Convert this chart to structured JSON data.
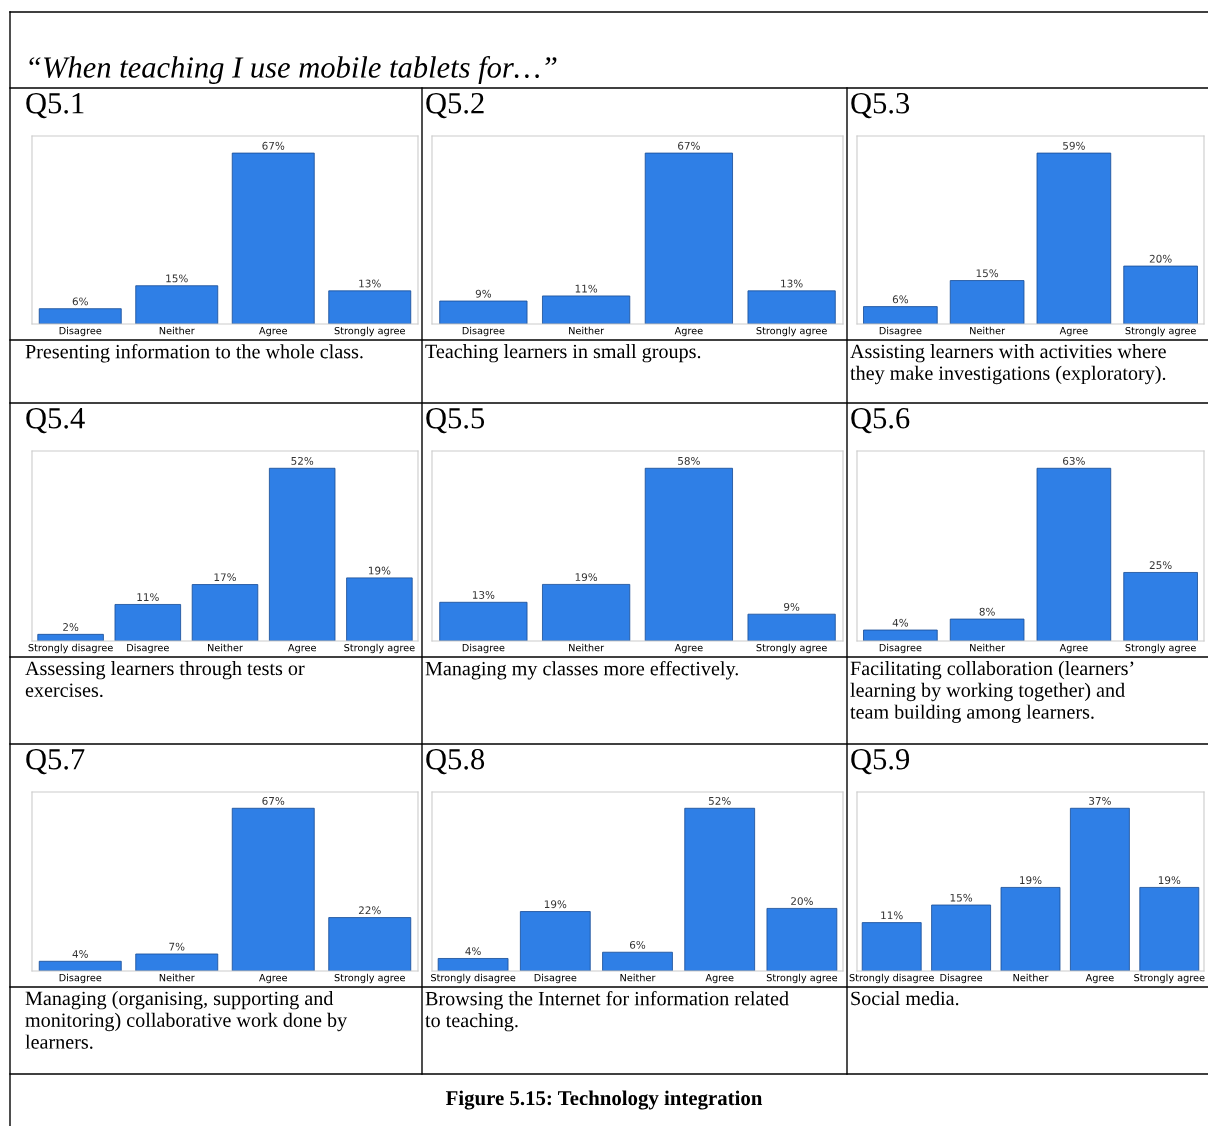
{
  "chart_data": [
    {
      "type": "bar",
      "title": "Q5.1",
      "categories": [
        "Disagree",
        "Neither",
        "Agree",
        "Strongly agree"
      ],
      "values": [
        6,
        15,
        67,
        13
      ],
      "value_labels": [
        "6%",
        "15%",
        "67%",
        "13%"
      ],
      "color": "#2f7fe6",
      "annotations": [
        "Presenting information to the whole class.",
        "“When teaching I use mobile tablets for…”"
      ]
    },
    {
      "type": "bar",
      "title": "Q5.2",
      "categories": [
        "Disagree",
        "Neither",
        "Agree",
        "Strongly agree"
      ],
      "values": [
        9,
        11,
        67,
        13
      ],
      "value_labels": [
        "9%",
        "11%",
        "67%",
        "13%"
      ],
      "color": "#2f7fe6",
      "annotations": [
        "Teaching learners in small groups."
      ]
    },
    {
      "type": "bar",
      "title": "Q5.3",
      "categories": [
        "Disagree",
        "Neither",
        "Agree",
        "Strongly agree"
      ],
      "values": [
        6,
        15,
        59,
        20
      ],
      "value_labels": [
        "6%",
        "15%",
        "59%",
        "20%"
      ],
      "color": "#2f7fe6",
      "annotations": [
        "Assisting learners with activities where\nthey make investigations (exploratory)."
      ]
    },
    {
      "type": "bar",
      "title": "Q5.4",
      "categories": [
        "Strongly disagree",
        "Disagree",
        "Neither",
        "Agree",
        "Strongly agree"
      ],
      "values": [
        2,
        11,
        17,
        52,
        19
      ],
      "value_labels": [
        "2%",
        "11%",
        "17%",
        "52%",
        "19%"
      ],
      "color": "#2f7fe6",
      "annotations": [
        "Assessing learners through tests or\nexercises."
      ]
    },
    {
      "type": "bar",
      "title": "Q5.5",
      "categories": [
        "Disagree",
        "Neither",
        "Agree",
        "Strongly agree"
      ],
      "values": [
        13,
        19,
        58,
        9
      ],
      "value_labels": [
        "13%",
        "19%",
        "58%",
        "9%"
      ],
      "color": "#2f7fe6",
      "annotations": [
        "Managing my classes more effectively."
      ]
    },
    {
      "type": "bar",
      "title": "Q5.6",
      "categories": [
        "Disagree",
        "Neither",
        "Agree",
        "Strongly agree"
      ],
      "values": [
        4,
        8,
        63,
        25
      ],
      "value_labels": [
        "4%",
        "8%",
        "63%",
        "25%"
      ],
      "color": "#2f7fe6",
      "annotations": [
        "Facilitating collaboration (learners’\nlearning by working together) and\nteam building among learners."
      ]
    },
    {
      "type": "bar",
      "title": "Q5.7",
      "categories": [
        "Disagree",
        "Neither",
        "Agree",
        "Strongly agree"
      ],
      "values": [
        4,
        7,
        67,
        22
      ],
      "value_labels": [
        "4%",
        "7%",
        "67%",
        "22%"
      ],
      "color": "#2f7fe6",
      "annotations": [
        "Managing (organising, supporting and\nmonitoring) collaborative work done by\nlearners."
      ]
    },
    {
      "type": "bar",
      "title": "Q5.8",
      "categories": [
        "Strongly disagree",
        "Disagree",
        "Neither",
        "Agree",
        "Strongly agree"
      ],
      "values": [
        4,
        19,
        6,
        52,
        20
      ],
      "value_labels": [
        "4%",
        "19%",
        "6%",
        "52%",
        "20%"
      ],
      "color": "#2f7fe6",
      "annotations": [
        "Browsing the Internet for information related\nto teaching."
      ]
    },
    {
      "type": "bar",
      "title": "Q5.9",
      "categories": [
        "Strongly disagree",
        "Disagree",
        "Neither",
        "Agree",
        "Strongly agree"
      ],
      "values": [
        11,
        15,
        19,
        37,
        19
      ],
      "value_labels": [
        "11%",
        "15%",
        "19%",
        "37%",
        "19%"
      ],
      "color": "#2f7fe6",
      "annotations": [
        "Social media.",
        "Figure 5.15: Technology integration"
      ]
    }
  ]
}
